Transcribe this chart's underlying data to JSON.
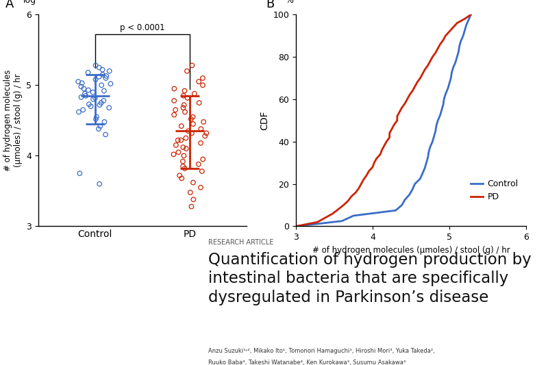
{
  "panel_A_label": "A",
  "panel_B_label": "B",
  "control_data": [
    4.48,
    4.62,
    4.72,
    4.78,
    4.82,
    4.85,
    4.88,
    4.92,
    4.95,
    4.98,
    5.0,
    5.02,
    5.05,
    5.08,
    5.1,
    5.12,
    5.15,
    5.18,
    5.2,
    5.22,
    4.55,
    4.65,
    4.7,
    4.75,
    4.8,
    4.9,
    5.25,
    5.28,
    4.42,
    4.38,
    4.3,
    4.52,
    4.68,
    4.73,
    4.83,
    4.93,
    5.03,
    5.13,
    3.75,
    3.6
  ],
  "pd_data": [
    3.28,
    3.55,
    3.72,
    3.78,
    3.82,
    3.88,
    3.92,
    3.95,
    4.0,
    4.05,
    4.1,
    4.15,
    4.18,
    4.22,
    4.25,
    4.28,
    4.32,
    4.35,
    4.38,
    4.42,
    4.45,
    4.48,
    4.52,
    4.55,
    4.58,
    4.62,
    4.65,
    4.68,
    4.72,
    4.75,
    4.78,
    4.82,
    4.85,
    4.88,
    4.92,
    4.95,
    5.0,
    5.05,
    5.1,
    5.2,
    3.38,
    3.48,
    3.62,
    3.68,
    3.85,
    4.02,
    4.12,
    4.22,
    4.32,
    5.28
  ],
  "control_mean": 4.85,
  "control_sd_low": 4.45,
  "control_sd_high": 5.15,
  "pd_mean": 4.35,
  "pd_sd_low": 3.82,
  "pd_sd_high": 4.85,
  "control_color": "#3A6CC8",
  "pd_color": "#CC2200",
  "ylim_A": [
    3.0,
    6.0
  ],
  "yticks_A": [
    3,
    4,
    5,
    6
  ],
  "ylabel_A": "# of hydrogen molecules\n(μmoles) / stool (g) / hr",
  "ylog_label": "log",
  "pvalue_text": "p < 0.0001",
  "xlim_B": [
    3.0,
    6.0
  ],
  "xticks_B": [
    3,
    4,
    5,
    6
  ],
  "ylim_B": [
    0,
    100
  ],
  "yticks_B": [
    0,
    20,
    40,
    60,
    80,
    100
  ],
  "xlabel_B": "# of hydrogen molecules (μmoles) / stool (g) / hr",
  "ylabel_B": "CDF",
  "percent_label": "%",
  "legend_control": "Control",
  "legend_pd": "PD",
  "research_article_text": "RESEARCH ARTICLE",
  "title_line1": "Quantification of hydrogen production by",
  "title_line2": "intestinal bacteria that are specifically",
  "title_line3": "dysregulated in Parkinson’s disease",
  "authors_text": "Anzu Suzuki¹ʸ², Mikako Ito¹, Tomonori Hamaguchi¹, Hiroshi Mori³, Yuka Takeda²,",
  "authors_text2": "Ruuko Baba⁴, Takeshi Watanabe⁴, Ken Kurokawa³, Susumu Asakawa⁴",
  "bg_color": "#FFFFFF"
}
